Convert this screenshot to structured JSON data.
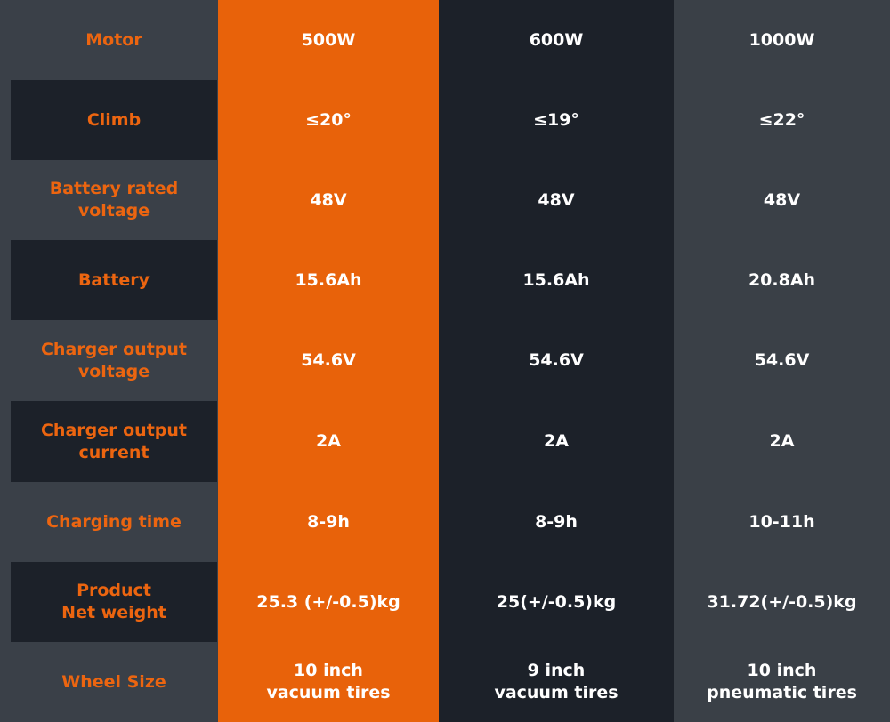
{
  "table": {
    "rows": [
      {
        "label": "Motor",
        "values": [
          "500W",
          "600W",
          "1000W"
        ]
      },
      {
        "label": "Climb",
        "values": [
          "≤20°",
          "≤19°",
          "≤22°"
        ]
      },
      {
        "label": "Battery rated\nvoltage",
        "values": [
          "48V",
          "48V",
          "48V"
        ]
      },
      {
        "label": "Battery",
        "values": [
          "15.6Ah",
          "15.6Ah",
          "20.8Ah"
        ]
      },
      {
        "label": "Charger output\nvoltage",
        "values": [
          "54.6V",
          "54.6V",
          "54.6V"
        ]
      },
      {
        "label": "Charger output\ncurrent",
        "values": [
          "2A",
          "2A",
          "2A"
        ]
      },
      {
        "label": "Charging time",
        "values": [
          "8-9h",
          "8-9h",
          "10-11h"
        ]
      },
      {
        "label": "Product\nNet weight",
        "values": [
          "25.3 (+/-0.5)kg",
          "25(+/-0.5)kg",
          "31.72(+/-0.5)kg"
        ]
      },
      {
        "label": "Wheel Size",
        "values": [
          "10 inch\nvacuum tires",
          "9 inch\nvacuum tires",
          "10 inch\npneumatic tires"
        ]
      }
    ]
  }
}
